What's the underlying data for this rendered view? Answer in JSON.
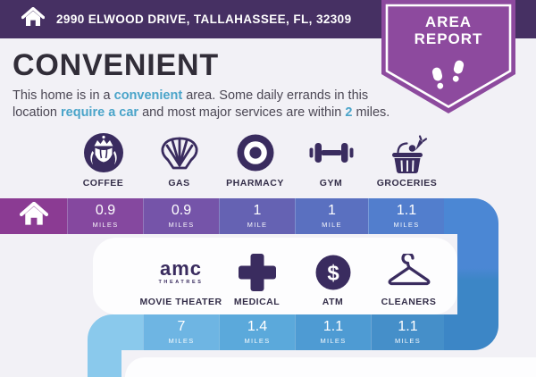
{
  "header": {
    "address": "2990 ELWOOD DRIVE, TALLAHASSEE, FL, 32309"
  },
  "badge": {
    "line1": "AREA",
    "line2": "REPORT"
  },
  "summary": {
    "title": "CONVENIENT",
    "segments": [
      {
        "text": "This home is in a ",
        "highlight": false
      },
      {
        "text": "convenient",
        "highlight": true
      },
      {
        "text": " area. Some daily errands in this\nlocation ",
        "highlight": false
      },
      {
        "text": "require a car",
        "highlight": true
      },
      {
        "text": " and most major services are within ",
        "highlight": false
      },
      {
        "text": "2",
        "highlight": true
      },
      {
        "text": " miles.",
        "highlight": false
      }
    ]
  },
  "amenities_row1": [
    {
      "label": "COFFEE",
      "icon": "starbucks-coffee-icon",
      "distance": {
        "value": "0.9",
        "unit": "MILES"
      }
    },
    {
      "label": "GAS",
      "icon": "shell-gas-icon",
      "distance": {
        "value": "0.9",
        "unit": "MILES"
      }
    },
    {
      "label": "PHARMACY",
      "icon": "target-pharmacy-icon",
      "distance": {
        "value": "1",
        "unit": "MILE"
      }
    },
    {
      "label": "GYM",
      "icon": "dumbbell-icon",
      "distance": {
        "value": "1",
        "unit": "MILE"
      }
    },
    {
      "label": "GROCERIES",
      "icon": "grocery-basket-icon",
      "distance": {
        "value": "1.1",
        "unit": "MILES"
      }
    }
  ],
  "amenities_row2": [
    {
      "label": "MOVIE THEATER",
      "icon": "amc-theatres-logo",
      "logo_text": {
        "word": "amc",
        "sub": "THEATRES"
      },
      "distance": {
        "value": "7",
        "unit": "MILES"
      }
    },
    {
      "label": "MEDICAL",
      "icon": "medical-cross-icon",
      "distance": {
        "value": "1.4",
        "unit": "MILES"
      }
    },
    {
      "label": "ATM",
      "icon": "dollar-atm-icon",
      "distance": {
        "value": "1.1",
        "unit": "MILES"
      }
    },
    {
      "label": "CLEANERS",
      "icon": "hanger-icon",
      "distance": {
        "value": "1.1",
        "unit": "MILES"
      }
    }
  ],
  "colors": {
    "header_bg": "#463063",
    "badge_purple": "#8d4a9e",
    "highlight_blue": "#4aa4c9",
    "icon_ink": "#3a2c5f",
    "bar1_home": "#8b3b93",
    "bar1_cells": [
      "#85489f",
      "#7554a9",
      "#6562b3",
      "#5a70c0",
      "#527ecd"
    ],
    "bar1_tail": "#4b87d4",
    "bar2_lead": "#8ac9ec",
    "bar2_cells": [
      "#6eb5e3",
      "#5ba9db",
      "#4e9bd3",
      "#458fc9"
    ],
    "bar2_tail": "#3c86c6"
  }
}
